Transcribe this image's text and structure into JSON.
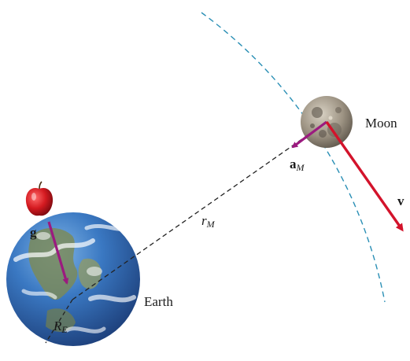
{
  "labels": {
    "moon": "Moon",
    "earth": "Earth",
    "velocity": "v",
    "moon_accel_main": "a",
    "moon_accel_sub": "M",
    "gravity": "g",
    "orbit_radius_main": "r",
    "orbit_radius_sub": "M",
    "earth_radius_main": "R",
    "earth_radius_sub": "E"
  },
  "colors": {
    "acceleration_arrow": "#9b1a7f",
    "velocity_arrow": "#d3132b",
    "orbit_path": "#2a8fb5",
    "radius_line": "#222222",
    "ocean": "#2f6fb8",
    "moon_surface": "#8e8476",
    "apple": "#d41a20"
  },
  "icons": {
    "earth": "earth-globe-icon",
    "moon": "moon-icon",
    "apple": "apple-icon"
  }
}
